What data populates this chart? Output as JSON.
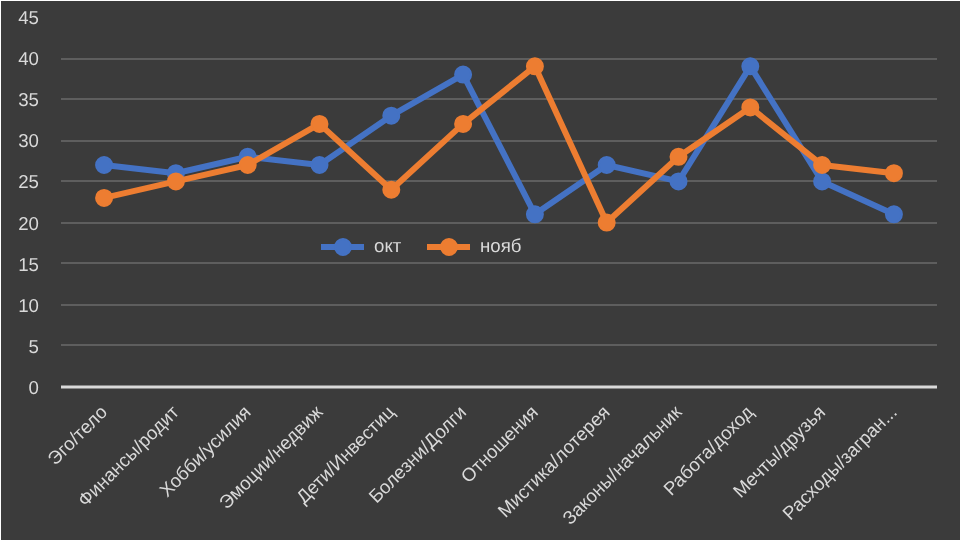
{
  "chart_data": {
    "type": "line",
    "categories": [
      "Эго/тело",
      "Финансы/родит",
      "Хобби/усилия",
      "Эмоции/недвиж",
      "Дети/Инвестиц",
      "Болезни/Долги",
      "Отношения",
      "Мистика/лотерея",
      "Законы/начальник",
      "Работа/доход",
      "Мечты/друзья",
      "Расходы/загран..."
    ],
    "series": [
      {
        "name": "окт",
        "color": "#4472c4",
        "values": [
          27,
          26,
          28,
          27,
          33,
          38,
          21,
          27,
          25,
          39,
          25,
          21
        ]
      },
      {
        "name": "нояб",
        "color": "#ed7d31",
        "values": [
          23,
          25,
          27,
          32,
          24,
          32,
          39,
          20,
          28,
          34,
          27,
          26
        ]
      }
    ],
    "ylim": [
      0,
      45
    ],
    "yticks": [
      0,
      5,
      10,
      15,
      20,
      25,
      30,
      35,
      40,
      45
    ],
    "grid": "y",
    "legend": "center",
    "marker": "circle",
    "line_style": "solid"
  }
}
